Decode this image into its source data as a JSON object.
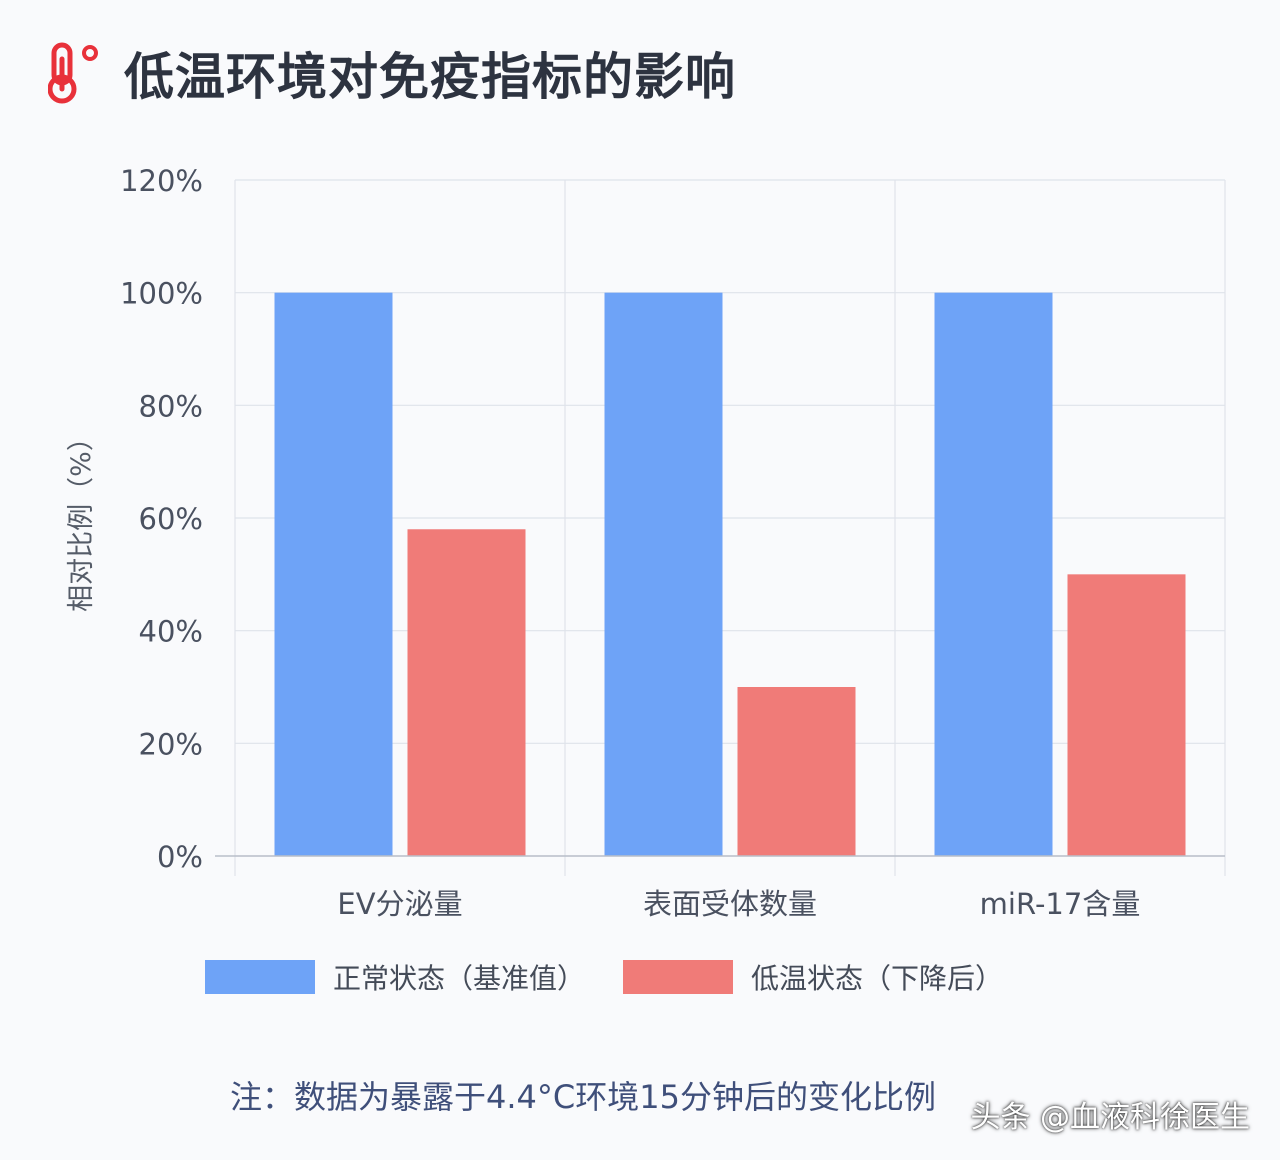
{
  "header": {
    "title": "低温环境对免疫指标的影响",
    "icon": "thermometer-icon",
    "icon_color": "#e8313a"
  },
  "chart_data": {
    "type": "bar",
    "title": "低温环境对免疫指标的影响",
    "ylabel": "相对比例（%）",
    "xlabel": "",
    "categories": [
      "EV分泌量",
      "表面受体数量",
      "miR-17含量"
    ],
    "series": [
      {
        "name": "正常状态（基准值）",
        "values": [
          100,
          100,
          100
        ],
        "color": "#6ea3f7"
      },
      {
        "name": "低温状态（下降后）",
        "values": [
          58,
          30,
          50
        ],
        "color": "#f07b78"
      }
    ],
    "ylim": [
      0,
      120
    ],
    "yticks": [
      0,
      20,
      40,
      60,
      80,
      100,
      120
    ],
    "ytick_labels": [
      "0%",
      "20%",
      "40%",
      "60%",
      "80%",
      "100%",
      "120%"
    ],
    "grid": true,
    "legend_position": "bottom"
  },
  "legend": {
    "normal_label": "正常状态（基准值）",
    "cold_label": "低温状态（下降后）"
  },
  "footer": {
    "note": "注：数据为暴露于4.4°C环境15分钟后的变化比例",
    "watermark": "头条 @血液科徐医生"
  }
}
